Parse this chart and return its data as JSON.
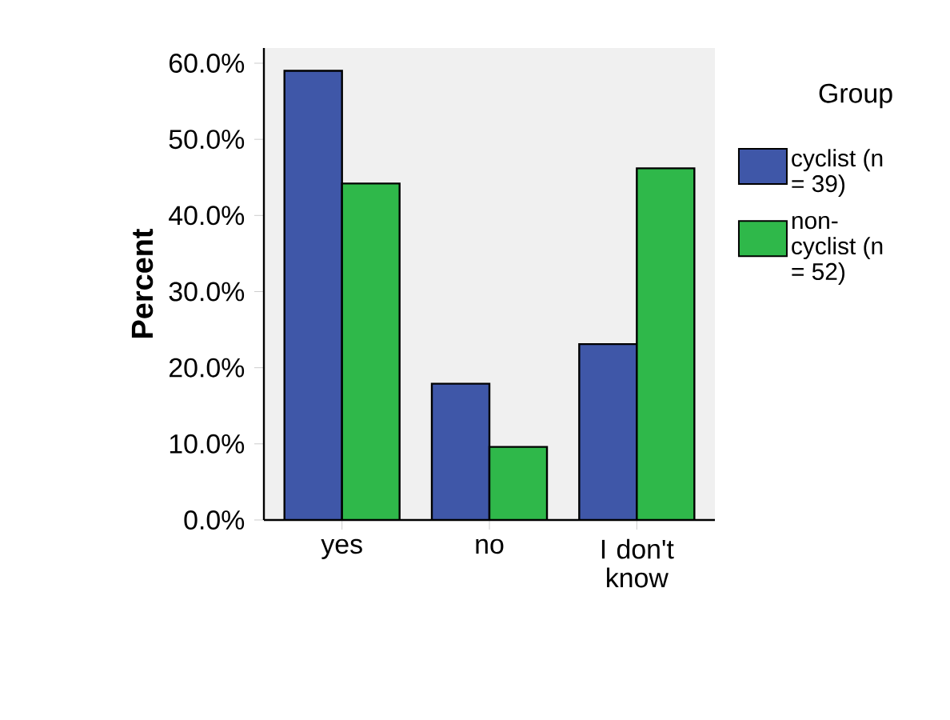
{
  "chart_data": {
    "type": "bar",
    "ylabel": "Percent",
    "legend_title": "Group",
    "legend": "right",
    "categories": [
      "yes",
      "no",
      "I don't know"
    ],
    "series": [
      {
        "name": "cyclist (n = 39)",
        "color": "#3f57a8",
        "values": [
          59.0,
          17.9,
          23.1
        ]
      },
      {
        "name": "non-cyclist (n = 52)",
        "color": "#2fb84a",
        "values": [
          44.2,
          9.6,
          46.2
        ]
      }
    ],
    "ylim": [
      0,
      62
    ],
    "yticks": [
      {
        "value": 0,
        "label": "0.0%"
      },
      {
        "value": 10,
        "label": "10.0%"
      },
      {
        "value": 20,
        "label": "20.0%"
      },
      {
        "value": 30,
        "label": "30.0%"
      },
      {
        "value": 40,
        "label": "40.0%"
      },
      {
        "value": 50,
        "label": "50.0%"
      },
      {
        "value": 60,
        "label": "60.0%"
      }
    ],
    "grid": false
  }
}
